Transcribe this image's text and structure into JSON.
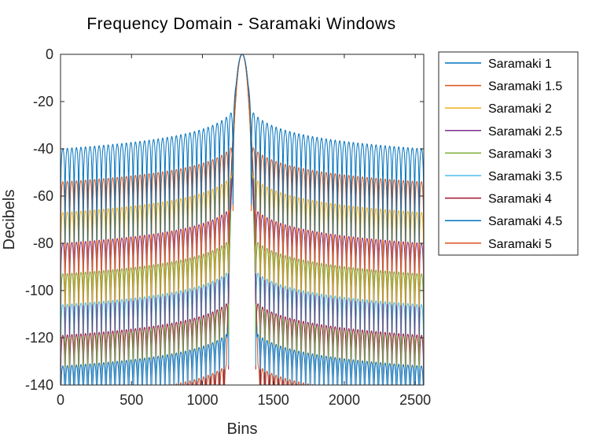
{
  "chart_data": {
    "type": "line",
    "title": "Frequency Domain - Saramaki Windows",
    "xlabel": "Bins",
    "ylabel": "Decibels",
    "xlim": [
      0,
      2560
    ],
    "ylim": [
      -140,
      0
    ],
    "xticks": [
      "0",
      "500",
      "1000",
      "1500",
      "2000",
      "2500"
    ],
    "xtick_values": [
      0,
      500,
      1000,
      1500,
      2000,
      2500
    ],
    "yticks": [
      "0",
      "-20",
      "-40",
      "-60",
      "-80",
      "-100",
      "-120",
      "-140"
    ],
    "ytick_values": [
      0,
      -20,
      -40,
      -60,
      -80,
      -100,
      -120,
      -140
    ],
    "grid": false,
    "legend_position": "outside-right",
    "peak_bin": 1280,
    "sidelobe_spacing_bins": 32,
    "series": [
      {
        "name": "Saramaki 1",
        "color": "#0072BD",
        "first_sidelobe_db": -21,
        "edge_sidelobe_db": -40,
        "mainlobe_halfwidth_bins": 38
      },
      {
        "name": "Saramaki 1.5",
        "color": "#D95319",
        "first_sidelobe_db": -36,
        "edge_sidelobe_db": -54,
        "mainlobe_halfwidth_bins": 44
      },
      {
        "name": "Saramaki 2",
        "color": "#EDB120",
        "first_sidelobe_db": -48,
        "edge_sidelobe_db": -67,
        "mainlobe_halfwidth_bins": 50
      },
      {
        "name": "Saramaki 2.5",
        "color": "#7E2F8E",
        "first_sidelobe_db": -61,
        "edge_sidelobe_db": -80,
        "mainlobe_halfwidth_bins": 56
      },
      {
        "name": "Saramaki 3",
        "color": "#77AC30",
        "first_sidelobe_db": -74,
        "edge_sidelobe_db": -93,
        "mainlobe_halfwidth_bins": 62
      },
      {
        "name": "Saramaki 3.5",
        "color": "#4DBEEE",
        "first_sidelobe_db": -87,
        "edge_sidelobe_db": -106,
        "mainlobe_halfwidth_bins": 68
      },
      {
        "name": "Saramaki 4",
        "color": "#A2142F",
        "first_sidelobe_db": -100,
        "edge_sidelobe_db": -119,
        "mainlobe_halfwidth_bins": 74
      },
      {
        "name": "Saramaki 4.5",
        "color": "#0072BD",
        "first_sidelobe_db": -113,
        "edge_sidelobe_db": -132,
        "mainlobe_halfwidth_bins": 80
      },
      {
        "name": "Saramaki 5",
        "color": "#D95319",
        "first_sidelobe_db": -126,
        "edge_sidelobe_db": -145,
        "mainlobe_halfwidth_bins": 86
      }
    ]
  }
}
